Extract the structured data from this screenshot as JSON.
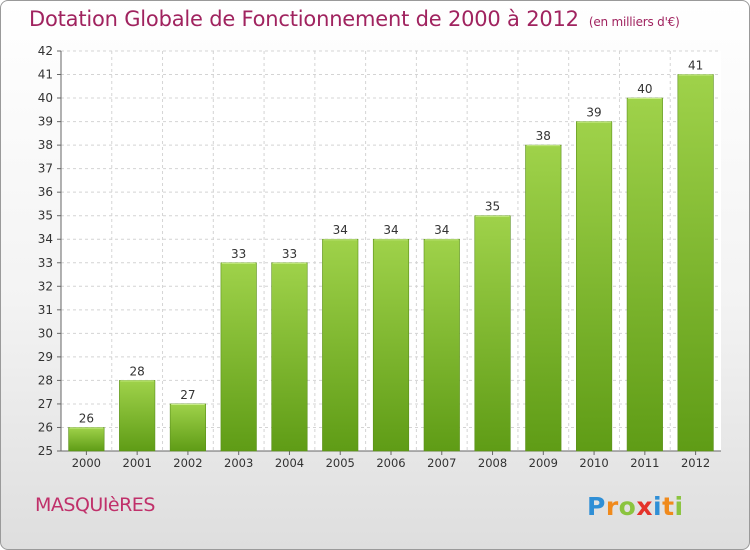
{
  "title": "Dotation Globale de Fonctionnement de 2000 à 2012",
  "subtitle": "(en milliers d'€)",
  "town": "MASQUIèRES",
  "brand": {
    "letters": [
      "P",
      "r",
      "o",
      "x",
      "i",
      "t",
      "i"
    ]
  },
  "colors": {
    "bar": "#7ab52a",
    "bar_light": "#9ccf48",
    "bar_dark": "#5e9a17",
    "title": "#a0235f",
    "grid": "#cfcfcf"
  },
  "chart_data": {
    "type": "bar",
    "categories": [
      "2000",
      "2001",
      "2002",
      "2003",
      "2004",
      "2005",
      "2006",
      "2007",
      "2008",
      "2009",
      "2010",
      "2011",
      "2012"
    ],
    "values": [
      26,
      28,
      27,
      33,
      33,
      34,
      34,
      34,
      35,
      38,
      39,
      40,
      41
    ],
    "ylim": [
      25,
      42
    ],
    "yticks": [
      25,
      26,
      27,
      28,
      29,
      30,
      31,
      32,
      33,
      34,
      35,
      36,
      37,
      38,
      39,
      40,
      41,
      42
    ],
    "grid": true
  }
}
